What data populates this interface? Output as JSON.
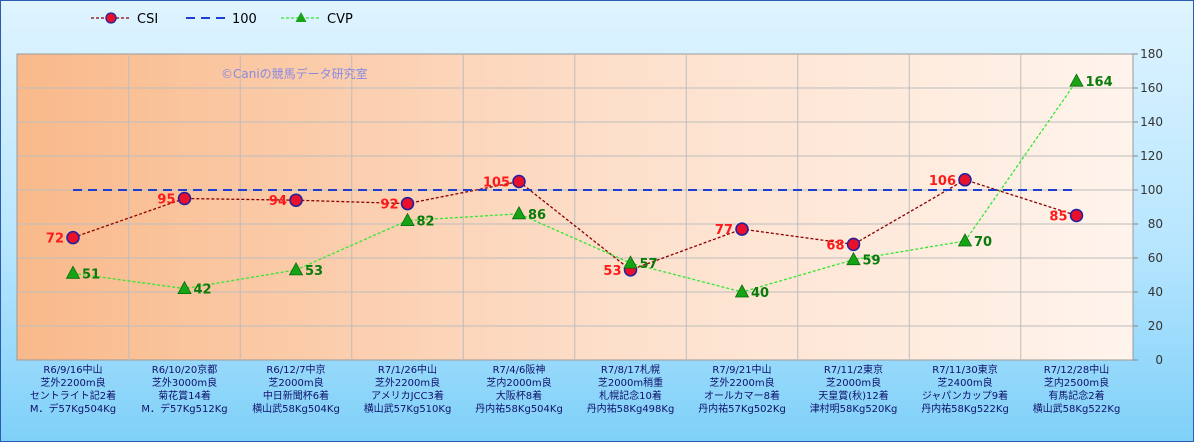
{
  "watermark": "©Caniの競馬データ研究室",
  "chart_data": {
    "type": "line",
    "ylim": [
      0,
      180
    ],
    "yticks": [
      0,
      20,
      40,
      60,
      80,
      100,
      120,
      140,
      160,
      180
    ],
    "grid": true,
    "legend_position": "top-left",
    "categories": [
      [
        "R6/9/16中山",
        "芝外2200m良",
        "セントライト記2着",
        "M．デ57Kg504Kg"
      ],
      [
        "R6/10/20京都",
        "芝外3000m良",
        "菊花賞14着",
        "M．デ57Kg512Kg"
      ],
      [
        "R6/12/7中京",
        "芝2000m良",
        "中日新聞杯6着",
        "横山武58Kg504Kg"
      ],
      [
        "R7/1/26中山",
        "芝外2200m良",
        "アメリカJCC3着",
        "横山武57Kg510Kg"
      ],
      [
        "R7/4/6阪神",
        "芝内2000m良",
        "大阪杯8着",
        "丹内祐58Kg504Kg"
      ],
      [
        "R7/8/17札幌",
        "芝2000m稍重",
        "札幌記念10着",
        "丹内祐58Kg498Kg"
      ],
      [
        "R7/9/21中山",
        "芝外2200m良",
        "オールカマー8着",
        "丹内祐57Kg502Kg"
      ],
      [
        "R7/11/2東京",
        "芝2000m良",
        "天皇賞(秋)12着",
        "津村明58Kg520Kg"
      ],
      [
        "R7/11/30東京",
        "芝2400m良",
        "ジャパンカップ9着",
        "丹内祐58Kg522Kg"
      ],
      [
        "R7/12/28中山",
        "芝内2500m良",
        "有馬記念2着",
        "横山武58Kg522Kg"
      ]
    ],
    "series": [
      {
        "name": "CSI",
        "values": [
          72,
          95,
          94,
          92,
          105,
          53,
          77,
          68,
          106,
          85
        ],
        "color": "#8b0000",
        "marker": "circle",
        "marker_fill": "#e8102a",
        "marker_stroke": "#2020a0",
        "label_color": "#ff1a1a",
        "label_side": "left"
      },
      {
        "name": "100",
        "values": [
          100,
          100,
          100,
          100,
          100,
          100,
          100,
          100,
          100,
          100
        ],
        "color": "#1f3fd0",
        "marker": "none"
      },
      {
        "name": "CVP",
        "values": [
          51,
          42,
          53,
          82,
          86,
          57,
          40,
          59,
          70,
          164
        ],
        "color": "#33e633",
        "marker": "triangle",
        "marker_fill": "#16a316",
        "label_color": "#0a7a0a",
        "label_side": "right"
      }
    ]
  }
}
